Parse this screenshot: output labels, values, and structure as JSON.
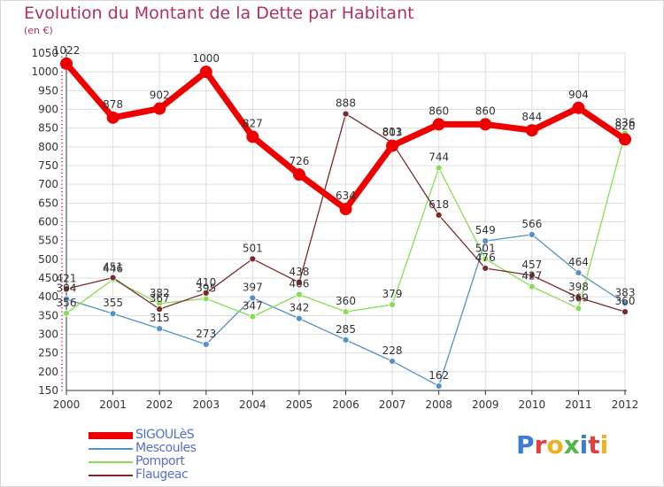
{
  "title": "Evolution du Montant de la Dette par Habitant",
  "unit": "(en €)",
  "logo": {
    "letters": [
      {
        "ch": "P",
        "color": "#3a7bd5"
      },
      {
        "ch": "r",
        "color": "#e04040"
      },
      {
        "ch": "o",
        "color": "#f0b020"
      },
      {
        "ch": "x",
        "color": "#50b848"
      },
      {
        "ch": "i",
        "color": "#3a7bd5"
      },
      {
        "ch": "t",
        "color": "#e04040"
      },
      {
        "ch": "i",
        "color": "#f0b020"
      }
    ]
  },
  "chart_data": {
    "type": "line",
    "title": "Evolution du Montant de la Dette par Habitant",
    "ylabel": "(en €)",
    "xlabel": "",
    "ylim": [
      150,
      1050
    ],
    "yticks": [
      150,
      200,
      250,
      300,
      350,
      400,
      450,
      500,
      550,
      600,
      650,
      700,
      750,
      800,
      850,
      900,
      950,
      1000,
      1050
    ],
    "grid": true,
    "legend_position": "bottom-left",
    "x": [
      "2000",
      "2001",
      "2002",
      "2003",
      "2004",
      "2005",
      "2006",
      "2007",
      "2008",
      "2009",
      "2010",
      "2011",
      "2012"
    ],
    "series": [
      {
        "name": "SIGOULèS",
        "color": "#ee0000",
        "emphasis": true,
        "values": [
          1022,
          878,
          902,
          1000,
          827,
          726,
          634,
          803,
          860,
          860,
          844,
          904,
          820
        ]
      },
      {
        "name": "Mescoules",
        "color": "#5590c8",
        "emphasis": false,
        "values": [
          394,
          355,
          315,
          273,
          397,
          342,
          285,
          228,
          162,
          549,
          566,
          464,
          383
        ]
      },
      {
        "name": "Pomport",
        "color": "#88dd55",
        "emphasis": false,
        "values": [
          356,
          446,
          382,
          395,
          347,
          406,
          360,
          379,
          744,
          501,
          427,
          369,
          836
        ]
      },
      {
        "name": "Flaugeac",
        "color": "#7a2a2a",
        "emphasis": false,
        "values": [
          421,
          451,
          367,
          410,
          501,
          438,
          888,
          811,
          618,
          476,
          457,
          398,
          360
        ]
      }
    ]
  }
}
